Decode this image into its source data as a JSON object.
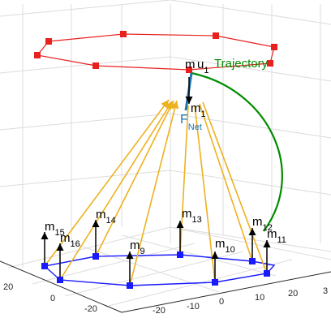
{
  "colors": {
    "drone_polygon": "#e8211f",
    "ground_polygon": "#1a1aff",
    "cable": "#edb120",
    "trajectory": "#008c00",
    "force": "#1f77b4",
    "u_label": "#e8503a",
    "arrow": "#000000",
    "grid": "#dcdcdc",
    "axis": "#262626"
  },
  "legend_labels": {
    "trajectory": "Trajectory",
    "mass_main": "m",
    "mass_main_sub": "1",
    "u": "u",
    "u_sub": "1",
    "force": "F",
    "force_sub": "Net"
  },
  "ground_masses": [
    {
      "name": "m",
      "sub": "15"
    },
    {
      "name": "m",
      "sub": "16"
    },
    {
      "name": "m",
      "sub": "14"
    },
    {
      "name": "m",
      "sub": "9"
    },
    {
      "name": "m",
      "sub": "13"
    },
    {
      "name": "m",
      "sub": "10"
    },
    {
      "name": "m",
      "sub": "12"
    },
    {
      "name": "m",
      "sub": "11"
    }
  ],
  "axis_ticks": {
    "left": [
      "20",
      "0",
      "-20"
    ],
    "bottom": [
      "-20",
      "-10",
      "0",
      "10",
      "20",
      "3"
    ]
  }
}
